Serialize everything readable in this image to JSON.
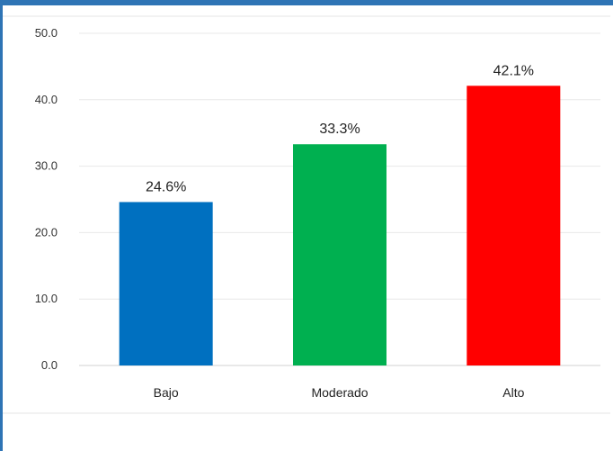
{
  "chart_data": {
    "type": "bar",
    "categories": [
      "Bajo",
      "Moderado",
      "Alto"
    ],
    "values": [
      24.6,
      33.3,
      42.1
    ],
    "data_labels": [
      "24.6%",
      "33.3%",
      "42.1%"
    ],
    "colors": [
      "#0070c0",
      "#00b050",
      "#ff0000"
    ],
    "y_ticks": [
      "0.0",
      "10.0",
      "20.0",
      "30.0",
      "40.0",
      "50.0"
    ],
    "ylim": [
      0,
      50
    ],
    "grid": true,
    "legend": "none"
  }
}
